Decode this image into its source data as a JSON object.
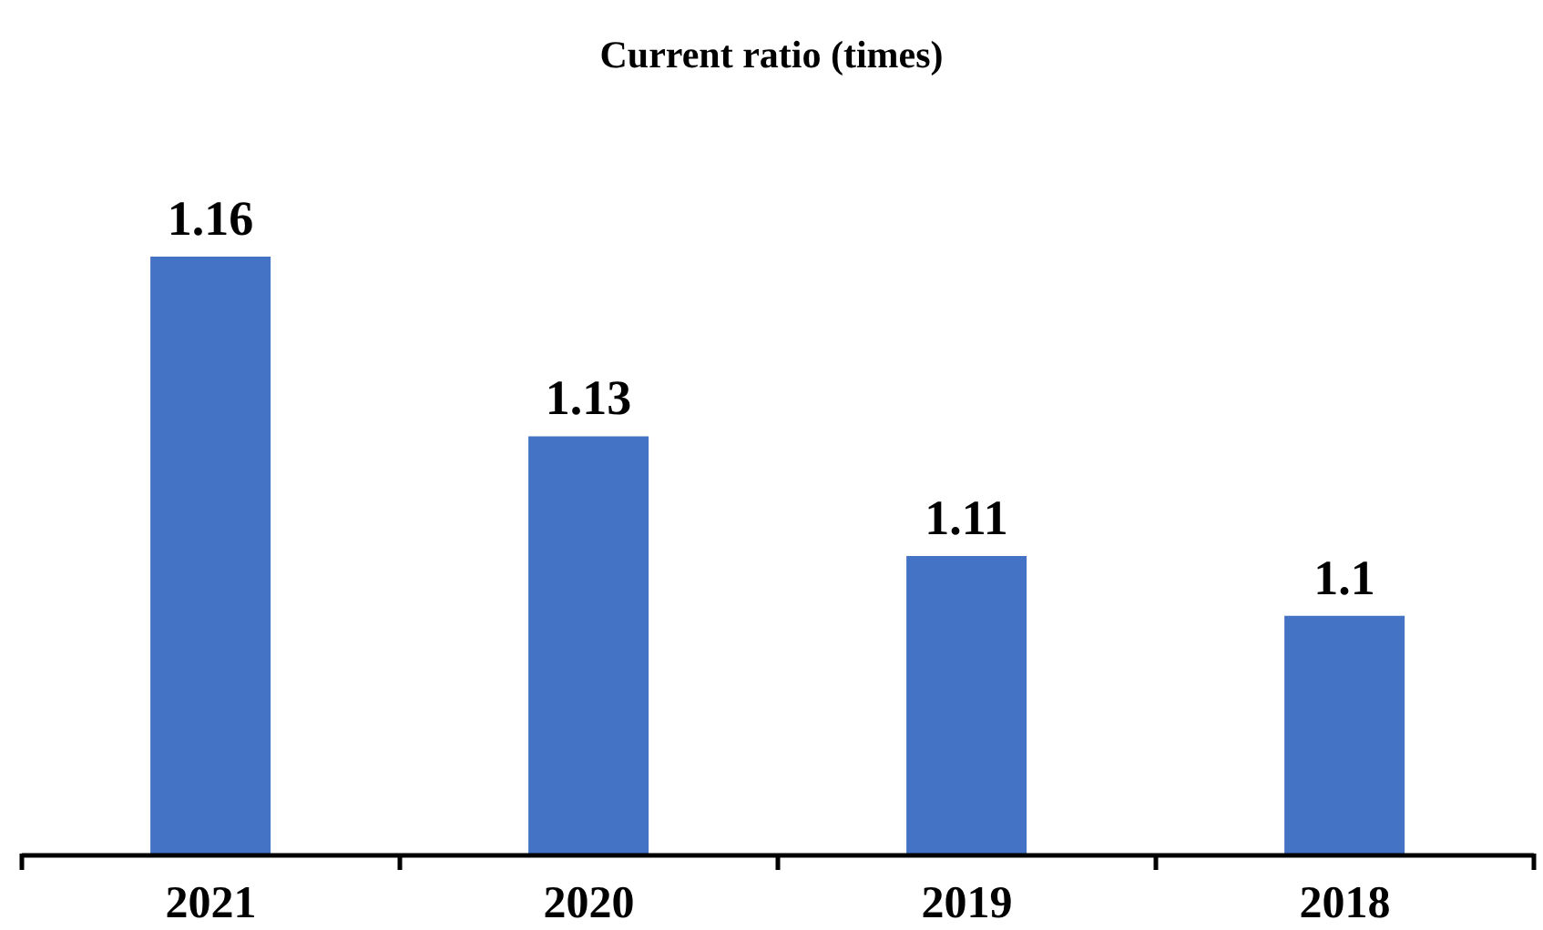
{
  "chart_data": {
    "type": "bar",
    "title": "Current ratio (times)",
    "categories": [
      "2021",
      "2020",
      "2019",
      "2018"
    ],
    "values": [
      1.16,
      1.13,
      1.11,
      1.1
    ],
    "color": "#4472c4",
    "ylim": [
      1.06,
      1.16
    ],
    "data_labels": true
  }
}
